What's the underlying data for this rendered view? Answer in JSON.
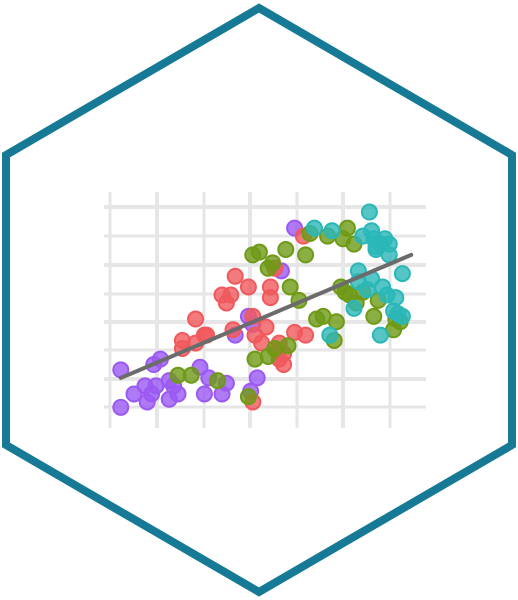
{
  "logo": {
    "shape": "hexagon",
    "border_color": "#167a96",
    "background_color": "#ffffff"
  },
  "chart_data": {
    "type": "scatter",
    "title": "",
    "xlabel": "",
    "ylabel": "",
    "grid": true,
    "grid_color": "#e6e6e6",
    "xlim": [
      0,
      14
    ],
    "ylim": [
      0,
      8
    ],
    "point_opacity": 0.8,
    "series": [
      {
        "color": "#9b59f2",
        "points": [
          [
            0.4,
            1.5
          ],
          [
            0.4,
            0.1
          ],
          [
            1.0,
            0.6
          ],
          [
            1.5,
            0.9
          ],
          [
            1.6,
            0.3
          ],
          [
            1.8,
            0.6
          ],
          [
            1.9,
            1.7
          ],
          [
            2.0,
            0.9
          ],
          [
            2.2,
            1.9
          ],
          [
            2.6,
            1.1
          ],
          [
            2.6,
            0.4
          ],
          [
            2.8,
            0.9
          ],
          [
            3.0,
            0.6
          ],
          [
            4.0,
            1.6
          ],
          [
            4.2,
            0.6
          ],
          [
            5.0,
            0.6
          ],
          [
            6.3,
            0.7
          ],
          [
            6.6,
            1.2
          ],
          [
            4.4,
            1.2
          ],
          [
            5.2,
            1.0
          ],
          [
            6.2,
            3.5
          ],
          [
            6.4,
            3.2
          ],
          [
            5.6,
            2.8
          ],
          [
            8.3,
            6.8
          ],
          [
            7.7,
            5.2
          ]
        ]
      },
      {
        "color": "#f0595c",
        "points": [
          [
            3.2,
            2.3
          ],
          [
            3.8,
            2.5
          ],
          [
            3.8,
            3.4
          ],
          [
            4.3,
            2.8
          ],
          [
            4.2,
            2.8
          ],
          [
            5.0,
            4.3
          ],
          [
            5.2,
            4.0
          ],
          [
            5.6,
            5.0
          ],
          [
            6.2,
            4.6
          ],
          [
            6.4,
            3.5
          ],
          [
            6.5,
            2.8
          ],
          [
            6.8,
            2.5
          ],
          [
            7.0,
            3.1
          ],
          [
            7.2,
            4.6
          ],
          [
            7.2,
            4.2
          ],
          [
            7.5,
            2.2
          ],
          [
            7.6,
            2.5
          ],
          [
            7.6,
            1.9
          ],
          [
            7.8,
            1.7
          ],
          [
            8.3,
            2.9
          ],
          [
            8.8,
            2.8
          ],
          [
            8.7,
            6.5
          ],
          [
            5.4,
            4.3
          ],
          [
            6.4,
            0.3
          ],
          [
            7.8,
            2.1
          ],
          [
            7.4,
            5.3
          ],
          [
            5.5,
            3.0
          ],
          [
            3.2,
            2.6
          ]
        ]
      },
      {
        "color": "#6e9a16",
        "points": [
          [
            3.0,
            1.3
          ],
          [
            3.6,
            1.3
          ],
          [
            4.8,
            1.1
          ],
          [
            6.2,
            0.5
          ],
          [
            6.5,
            1.9
          ],
          [
            6.4,
            5.8
          ],
          [
            7.1,
            5.3
          ],
          [
            7.3,
            5.5
          ],
          [
            7.1,
            2.0
          ],
          [
            7.4,
            2.3
          ],
          [
            7.9,
            6.0
          ],
          [
            8.1,
            4.6
          ],
          [
            8.5,
            4.1
          ],
          [
            9.0,
            6.6
          ],
          [
            8.8,
            5.8
          ],
          [
            9.3,
            3.4
          ],
          [
            9.6,
            3.5
          ],
          [
            9.8,
            6.5
          ],
          [
            10.1,
            2.6
          ],
          [
            10.2,
            3.3
          ],
          [
            10.4,
            4.6
          ],
          [
            10.5,
            6.4
          ],
          [
            10.6,
            4.4
          ],
          [
            10.8,
            4.3
          ],
          [
            11.0,
            6.2
          ],
          [
            11.1,
            4.0
          ],
          [
            11.4,
            4.4
          ],
          [
            12.1,
            4.1
          ],
          [
            11.9,
            3.5
          ],
          [
            12.8,
            3.0
          ],
          [
            12.9,
            3.4
          ],
          [
            13.1,
            3.3
          ],
          [
            8.0,
            2.4
          ],
          [
            6.7,
            5.9
          ],
          [
            10.7,
            6.8
          ]
        ]
      },
      {
        "color": "#2ab7b8",
        "points": [
          [
            11.2,
            4.8
          ],
          [
            11.4,
            6.5
          ],
          [
            11.6,
            4.5
          ],
          [
            11.7,
            7.4
          ],
          [
            11.8,
            6.7
          ],
          [
            11.9,
            6.4
          ],
          [
            12.0,
            6.1
          ],
          [
            12.2,
            6.2
          ],
          [
            12.4,
            6.4
          ],
          [
            12.3,
            4.6
          ],
          [
            12.5,
            4.3
          ],
          [
            12.8,
            3.7
          ],
          [
            12.9,
            4.2
          ],
          [
            13.0,
            3.6
          ],
          [
            13.2,
            3.5
          ],
          [
            12.2,
            2.8
          ],
          [
            11.2,
            5.2
          ],
          [
            12.6,
            6.2
          ],
          [
            13.2,
            5.1
          ],
          [
            9.2,
            6.8
          ],
          [
            10.0,
            6.7
          ],
          [
            12.6,
            5.8
          ],
          [
            11.0,
            3.8
          ],
          [
            11.8,
            4.9
          ],
          [
            9.9,
            2.8
          ],
          [
            12.0,
            6.0
          ]
        ]
      }
    ],
    "trend_line": {
      "color": "#6b6b6b",
      "points": [
        [
          0.4,
          1.2
        ],
        [
          13.6,
          5.8
        ]
      ]
    }
  }
}
